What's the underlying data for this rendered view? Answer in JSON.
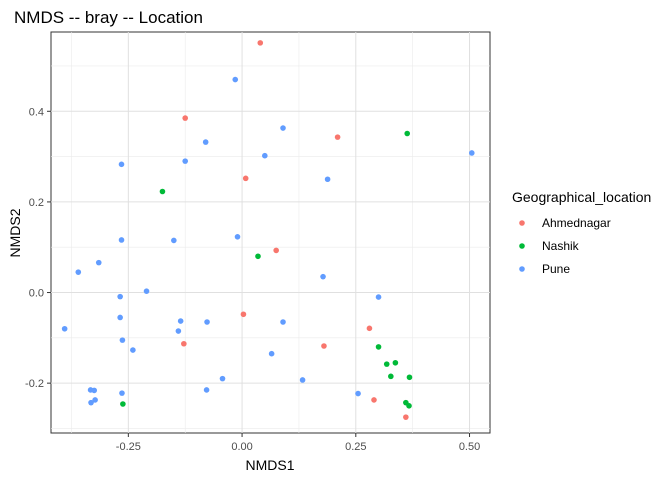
{
  "chart_data": {
    "type": "scatter",
    "title": "NMDS -- bray -- Location",
    "xlabel": "NMDS1",
    "ylabel": "NMDS2",
    "xlim": [
      -0.42,
      0.545
    ],
    "ylim": [
      -0.31,
      0.575
    ],
    "x_ticks": [
      -0.25,
      0.0,
      0.25,
      0.5
    ],
    "x_tick_labels": [
      "-0.25",
      "0.00",
      "0.25",
      "0.50"
    ],
    "y_ticks": [
      -0.2,
      0.0,
      0.2,
      0.4
    ],
    "y_tick_labels": [
      "-0.2",
      "0.0",
      "0.2",
      "0.4"
    ],
    "grid": true,
    "legend_position": "right",
    "legend_title": "Geographical_location",
    "series": [
      {
        "name": "Ahmednagar",
        "color": "#F8766D",
        "points": [
          [
            0.04,
            0.551
          ],
          [
            -0.125,
            0.385
          ],
          [
            0.21,
            0.343
          ],
          [
            0.008,
            0.252
          ],
          [
            0.075,
            0.093
          ],
          [
            0.003,
            -0.048
          ],
          [
            0.28,
            -0.079
          ],
          [
            -0.128,
            -0.113
          ],
          [
            0.18,
            -0.118
          ],
          [
            0.29,
            -0.237
          ],
          [
            0.36,
            -0.275
          ]
        ]
      },
      {
        "name": "Nashik",
        "color": "#00BA38",
        "points": [
          [
            0.363,
            0.351
          ],
          [
            -0.175,
            0.223
          ],
          [
            0.035,
            0.08
          ],
          [
            0.3,
            -0.12
          ],
          [
            0.318,
            -0.158
          ],
          [
            0.337,
            -0.155
          ],
          [
            0.368,
            -0.187
          ],
          [
            0.327,
            -0.185
          ],
          [
            0.36,
            -0.243
          ],
          [
            0.367,
            -0.25
          ],
          [
            -0.262,
            -0.246
          ]
        ]
      },
      {
        "name": "Pune",
        "color": "#619CFF",
        "points": [
          [
            -0.015,
            0.47
          ],
          [
            0.09,
            0.363
          ],
          [
            -0.08,
            0.332
          ],
          [
            0.05,
            0.302
          ],
          [
            0.505,
            0.308
          ],
          [
            -0.125,
            0.29
          ],
          [
            -0.265,
            0.283
          ],
          [
            0.188,
            0.25
          ],
          [
            -0.265,
            0.116
          ],
          [
            -0.01,
            0.123
          ],
          [
            -0.15,
            0.115
          ],
          [
            -0.315,
            0.066
          ],
          [
            -0.36,
            0.045
          ],
          [
            0.178,
            0.035
          ],
          [
            -0.21,
            0.003
          ],
          [
            -0.268,
            -0.009
          ],
          [
            0.3,
            -0.01
          ],
          [
            -0.39,
            -0.08
          ],
          [
            -0.268,
            -0.055
          ],
          [
            -0.135,
            -0.063
          ],
          [
            -0.077,
            -0.065
          ],
          [
            0.09,
            -0.065
          ],
          [
            -0.14,
            -0.085
          ],
          [
            -0.263,
            -0.105
          ],
          [
            -0.24,
            -0.127
          ],
          [
            0.065,
            -0.135
          ],
          [
            -0.043,
            -0.19
          ],
          [
            0.133,
            -0.193
          ],
          [
            -0.078,
            -0.215
          ],
          [
            0.255,
            -0.223
          ],
          [
            -0.333,
            -0.215
          ],
          [
            -0.325,
            -0.216
          ],
          [
            -0.264,
            -0.222
          ],
          [
            -0.323,
            -0.237
          ],
          [
            -0.332,
            -0.243
          ]
        ]
      }
    ]
  }
}
